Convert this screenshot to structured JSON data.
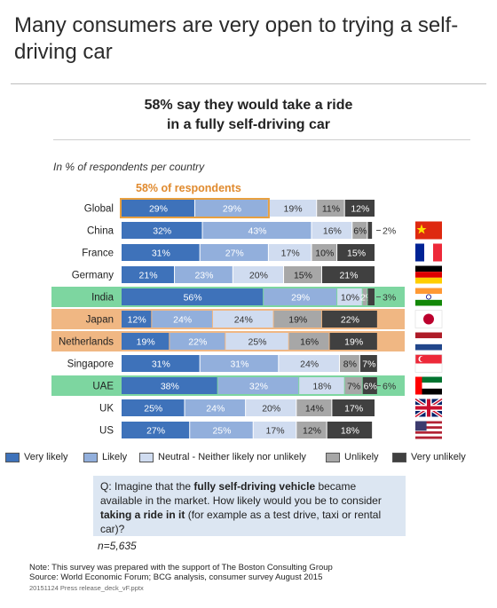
{
  "title": "Many consumers are very open to trying a self-driving car",
  "subtitle_line1": "58% say they would take a ride",
  "subtitle_line2": "in a fully self-driving car",
  "unit_label": "In % of respondents per country",
  "highlight_label": "58% of respondents",
  "colors": {
    "very_likely": "#3e72ba",
    "likely": "#92afdc",
    "neutral": "#d0dcf0",
    "unlikely": "#a7a7a7",
    "very_unlikely": "#404040",
    "highlight_green": "#7dd6a0",
    "highlight_orange": "#f0b783",
    "highlight_outline": "#e8a040"
  },
  "chart_data": {
    "type": "bar",
    "orientation": "horizontal",
    "stacked": true,
    "percent_100": true,
    "categories": [
      "Global",
      "China",
      "France",
      "Germany",
      "India",
      "Japan",
      "Netherlands",
      "Singapore",
      "UAE",
      "UK",
      "US"
    ],
    "series": [
      {
        "name": "Very likely",
        "values": [
          29,
          32,
          31,
          21,
          56,
          12,
          19,
          31,
          38,
          25,
          27
        ]
      },
      {
        "name": "Likely",
        "values": [
          29,
          43,
          27,
          23,
          29,
          24,
          22,
          31,
          32,
          24,
          25
        ]
      },
      {
        "name": "Neutral - Neither likely nor unlikely",
        "values": [
          19,
          16,
          17,
          20,
          10,
          24,
          25,
          24,
          18,
          20,
          17
        ]
      },
      {
        "name": "Unlikely",
        "values": [
          11,
          6,
          10,
          15,
          2,
          19,
          16,
          8,
          7,
          14,
          12
        ]
      },
      {
        "name": "Very unlikely",
        "values": [
          12,
          2,
          15,
          21,
          3,
          22,
          19,
          7,
          6,
          17,
          18
        ]
      }
    ],
    "xlim": [
      0,
      100
    ],
    "highlight_rows": {
      "green": [
        "India",
        "UAE"
      ],
      "orange": [
        "Japan",
        "Netherlands"
      ]
    },
    "highlight_global_top_two": 58,
    "outside_labels": {
      "China": "2%",
      "India": "3%",
      "UAE": "6%"
    },
    "flags": [
      "china-flag",
      "france-flag",
      "germany-flag",
      "india-flag",
      "japan-flag",
      "netherlands-flag",
      "singapore-flag",
      "uae-flag",
      "uk-flag",
      "us-flag"
    ],
    "legend_position": "bottom"
  },
  "legend": [
    "Very likely",
    "Likely",
    "Neutral - Neither likely nor unlikely",
    "Unlikely",
    "Very unlikely"
  ],
  "question": {
    "prefix": "Q: Imagine that the ",
    "bold1": "fully self-driving vehicle",
    "mid": " became available in the market. How likely would you be to consider ",
    "bold2": "taking a ride in it",
    "suffix": " (for example as a test drive, taxi or rental car)?"
  },
  "sample_size": "n=5,635",
  "note_line1": "Note: This survey was prepared with the support of The Boston Consulting Group",
  "note_line2": "Source: World Economic Forum; BCG analysis, consumer survey August 2015",
  "reference": "20151124   Press release_deck_vF.pptx"
}
